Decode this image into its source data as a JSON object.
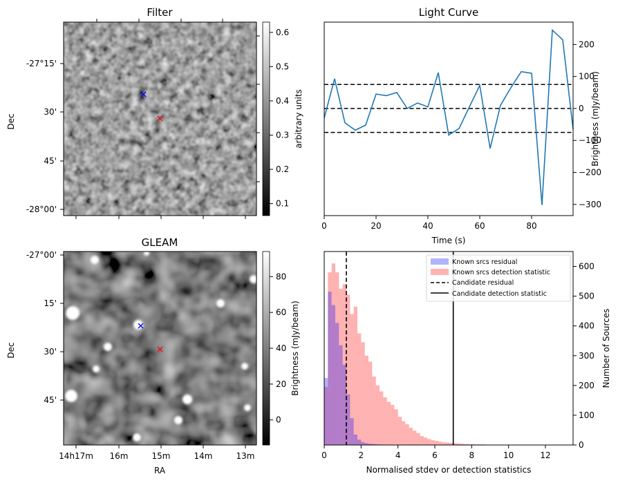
{
  "chart_data": [
    {
      "id": "filter",
      "type": "heatmap",
      "title": "Filter",
      "ylabel": "Dec",
      "yticks": [
        "-27°15'",
        "30'",
        "45'",
        "-28°00'"
      ],
      "colorbar": {
        "label": "arbitrary units",
        "ticks": [
          "0.1",
          "0.2",
          "0.3",
          "0.4",
          "0.5",
          "0.6"
        ],
        "range": [
          0.065,
          0.63
        ],
        "colormap": "gray"
      },
      "markers": [
        {
          "symbol": "x",
          "color": "#0000ff"
        },
        {
          "symbol": "x",
          "color": "#ff0000"
        }
      ]
    },
    {
      "id": "lightcurve",
      "type": "line",
      "title": "Light Curve",
      "xlabel": "Time (s)",
      "ylabel": "Brightness (mJy/beam)",
      "xlim": [
        0,
        96
      ],
      "ylim": [
        -335,
        270
      ],
      "xticks": [
        "0",
        "20",
        "40",
        "60",
        "80"
      ],
      "yticks": [
        "200",
        "100",
        "0",
        "−100",
        "−200",
        "−300"
      ],
      "line_color": "#1f77b4",
      "x": [
        0,
        4,
        8,
        12,
        16,
        20,
        24,
        28,
        32,
        36,
        40,
        44,
        48,
        52,
        56,
        60,
        64,
        68,
        72,
        76,
        80,
        84,
        88,
        92,
        96
      ],
      "y": [
        -30,
        93,
        -45,
        -68,
        -52,
        45,
        40,
        50,
        0,
        17,
        5,
        112,
        -83,
        -63,
        5,
        72,
        -125,
        10,
        65,
        115,
        110,
        -302,
        245,
        215,
        -65
      ],
      "hlines": [
        75,
        0,
        -75
      ],
      "hline_style": "dashed",
      "hline_color": "#000000"
    },
    {
      "id": "gleam",
      "type": "heatmap",
      "title": "GLEAM",
      "xlabel": "RA",
      "ylabel": "Dec",
      "yticks": [
        "-27°00'",
        "15'",
        "30'",
        "45'"
      ],
      "xticks": [
        "14h17m",
        "16m",
        "15m",
        "14m",
        "13m"
      ],
      "colorbar": {
        "label": "Brightness (mJy/beam)",
        "ticks": [
          "80",
          "60",
          "40",
          "20",
          "0"
        ],
        "range": [
          -14,
          94
        ],
        "colormap": "gray"
      },
      "markers": [
        {
          "symbol": "x",
          "color": "#0000ff"
        },
        {
          "symbol": "x",
          "color": "#ff0000"
        }
      ]
    },
    {
      "id": "histogram",
      "type": "bar",
      "xlabel": "Normalised stdev or detection statistics",
      "ylabel": "Number of Sources",
      "xlim": [
        0,
        13.5
      ],
      "ylim": [
        0,
        650
      ],
      "xticks": [
        "0",
        "2",
        "4",
        "6",
        "8",
        "10",
        "12"
      ],
      "yticks": [
        "0",
        "100",
        "200",
        "300",
        "400",
        "500",
        "600"
      ],
      "bin_width": 0.2,
      "series": [
        {
          "name": "Known srcs residual",
          "color": "#0000ff",
          "alpha": 0.3,
          "bin_start": 0,
          "values": [
            225,
            515,
            470,
            410,
            335,
            270,
            170,
            90,
            35,
            18,
            10,
            6,
            4,
            3,
            2,
            1,
            1
          ]
        },
        {
          "name": "Known srcs detection statistic",
          "color": "#ff0000",
          "alpha": 0.3,
          "bin_start": 0,
          "values": [
            195,
            580,
            610,
            580,
            525,
            540,
            505,
            440,
            465,
            375,
            345,
            300,
            280,
            230,
            200,
            180,
            160,
            145,
            135,
            120,
            95,
            80,
            70,
            58,
            48,
            40,
            30,
            25,
            20,
            16,
            14,
            11,
            9,
            8,
            7,
            6,
            5,
            4,
            3,
            3,
            3,
            2,
            2,
            2,
            1,
            1,
            1,
            1,
            1,
            1,
            1,
            1,
            1,
            1,
            1,
            1,
            1,
            1,
            1,
            1,
            1,
            1,
            1,
            1
          ]
        }
      ],
      "vlines": [
        {
          "name": "Candidate residual",
          "x": 1.2,
          "style": "dashed"
        },
        {
          "name": "Candidate detection statistic",
          "x": 7.0,
          "style": "solid"
        }
      ],
      "legend": "top-right"
    }
  ]
}
